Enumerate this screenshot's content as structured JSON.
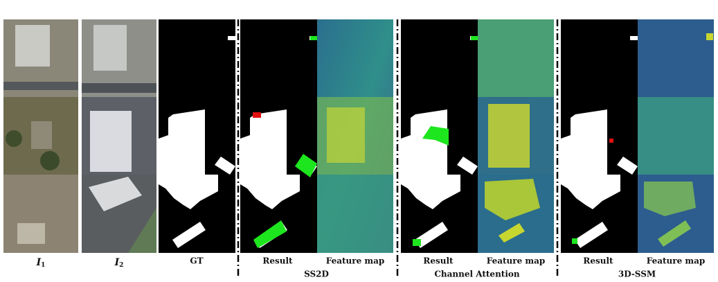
{
  "columns": [
    {
      "label": {
        "symbol": "I",
        "subscript": "1"
      }
    },
    {
      "label": {
        "symbol": "I",
        "subscript": "2"
      }
    },
    {
      "label": "GT"
    },
    {
      "label": "Result"
    },
    {
      "label": "Feature map"
    },
    {
      "label": "Result"
    },
    {
      "label": "Feature map"
    },
    {
      "label": "Result"
    },
    {
      "label": "Feature map"
    }
  ],
  "groups": [
    {
      "label": "SS2D"
    },
    {
      "label": "Channel Attention"
    },
    {
      "label": "3D-SSM"
    }
  ]
}
